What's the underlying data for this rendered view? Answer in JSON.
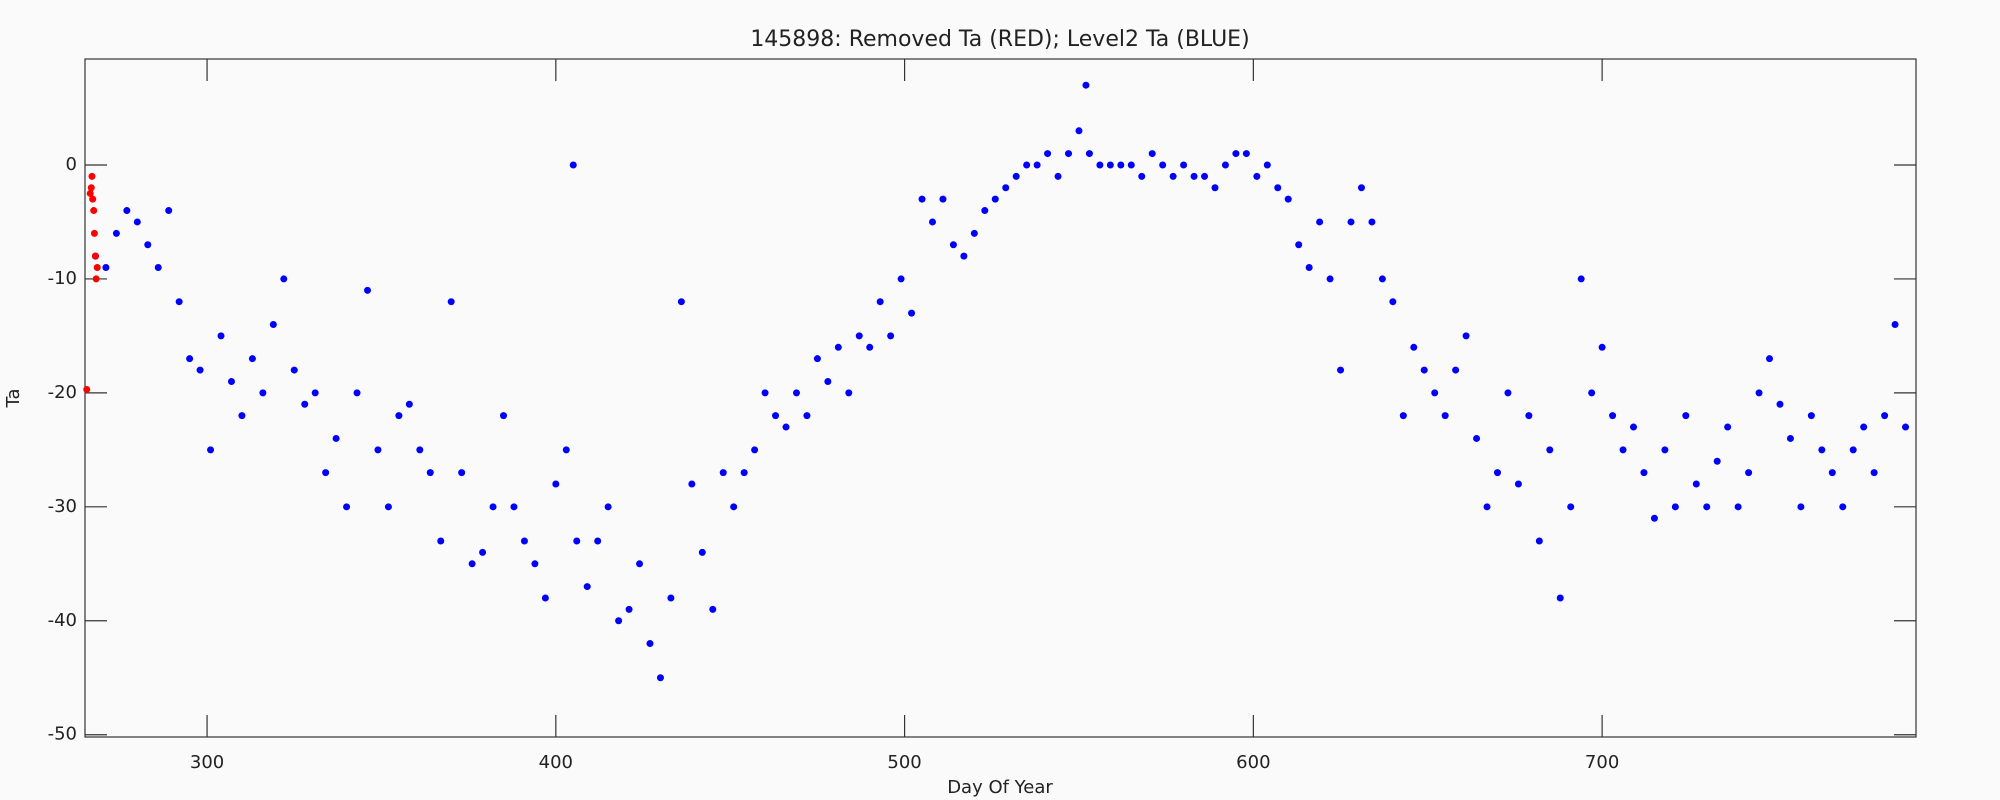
{
  "chart_data": {
    "type": "scatter",
    "title": "145898: Removed Ta (RED); Level2 Ta (BLUE)",
    "x_label": "Day Of Year",
    "y_label": "Ta",
    "xlim": [
      265,
      790
    ],
    "ylim": [
      -50.2,
      9.3
    ],
    "xticks": [
      300,
      400,
      500,
      600,
      700
    ],
    "yticks": [
      -50,
      -40,
      -30,
      -20,
      -10,
      0
    ],
    "series": [
      {
        "color": "#0000ff",
        "x": [
          268,
          271,
          274,
          277,
          280,
          283,
          286,
          289,
          292,
          295,
          298,
          301,
          304,
          307,
          310,
          313,
          316,
          319,
          322,
          325,
          328,
          331,
          334,
          337,
          340,
          343,
          346,
          349,
          352,
          355,
          358,
          361,
          364,
          367,
          370,
          373,
          376,
          379,
          382,
          385,
          388,
          391,
          394,
          397,
          400,
          403,
          405,
          406,
          409,
          412,
          415,
          418,
          421,
          424,
          427,
          430,
          433,
          436,
          439,
          442,
          445,
          448,
          451,
          454,
          457,
          460,
          463,
          466,
          469,
          472,
          475,
          478,
          481,
          484,
          487,
          490,
          493,
          496,
          499,
          502,
          505,
          508,
          511,
          514,
          517,
          520,
          523,
          526,
          529,
          532,
          535,
          538,
          541,
          544,
          547,
          550,
          552,
          553,
          556,
          559,
          562,
          565,
          568,
          571,
          574,
          577,
          580,
          583,
          586,
          589,
          592,
          595,
          598,
          601,
          604,
          607,
          610,
          613,
          616,
          619,
          622,
          625,
          628,
          631,
          634,
          637,
          640,
          643,
          646,
          649,
          652,
          655,
          658,
          661,
          664,
          667,
          670,
          673,
          676,
          679,
          682,
          685,
          688,
          691,
          694,
          697,
          700,
          703,
          706,
          709,
          712,
          715,
          718,
          721,
          724,
          727,
          730,
          733,
          736,
          739,
          742,
          745,
          748,
          751,
          754,
          757,
          760,
          763,
          766,
          769,
          772,
          775,
          778,
          781,
          784,
          787
        ],
        "values": [
          -8,
          -9,
          -6,
          -4,
          -5,
          -7,
          -9,
          -4,
          -12,
          -17,
          -18,
          -25,
          -15,
          -19,
          -22,
          -17,
          -20,
          -14,
          -10,
          -18,
          -21,
          -20,
          -27,
          -24,
          -30,
          -20,
          -11,
          -25,
          -30,
          -22,
          -21,
          -25,
          -27,
          -33,
          -12,
          -27,
          -35,
          -34,
          -30,
          -22,
          -30,
          -33,
          -35,
          -38,
          -28,
          -25,
          0,
          -33,
          -37,
          -33,
          -30,
          -40,
          -39,
          -35,
          -42,
          -45,
          -38,
          -12,
          -28,
          -34,
          -39,
          -27,
          -30,
          -27,
          -25,
          -20,
          -22,
          -23,
          -20,
          -22,
          -17,
          -19,
          -16,
          -20,
          -15,
          -16,
          -12,
          -15,
          -10,
          -13,
          -3,
          -5,
          -3,
          -7,
          -8,
          -6,
          -4,
          -3,
          -2,
          -1,
          0,
          0,
          1,
          -1,
          1,
          3,
          7,
          1,
          0,
          0,
          0,
          0,
          -1,
          1,
          0,
          -1,
          0,
          -1,
          -1,
          -2,
          0,
          1,
          1,
          -1,
          0,
          -2,
          -3,
          -7,
          -9,
          -5,
          -10,
          -18,
          -5,
          -2,
          -5,
          -10,
          -12,
          -22,
          -16,
          -18,
          -20,
          -22,
          -18,
          -15,
          -24,
          -30,
          -27,
          -20,
          -28,
          -22,
          -33,
          -25,
          -38,
          -30,
          -10,
          -20,
          -16,
          -22,
          -25,
          -23,
          -27,
          -31,
          -25,
          -30,
          -22,
          -28,
          -30,
          -26,
          -23,
          -30,
          -27,
          -20,
          -17,
          -21,
          -24,
          -30,
          -22,
          -25,
          -27,
          -30,
          -25,
          -23,
          -27,
          -22,
          -14,
          -23
        ]
      },
      {
        "color": "#ff0000",
        "x": [
          265.5,
          266.5,
          266.8,
          267,
          267.2,
          267.5,
          267.7,
          268,
          268.2,
          268.5
        ],
        "values": [
          -19.7,
          -2.5,
          -2,
          -1,
          -3,
          -4,
          -6,
          -8,
          -10,
          -9
        ]
      }
    ]
  }
}
